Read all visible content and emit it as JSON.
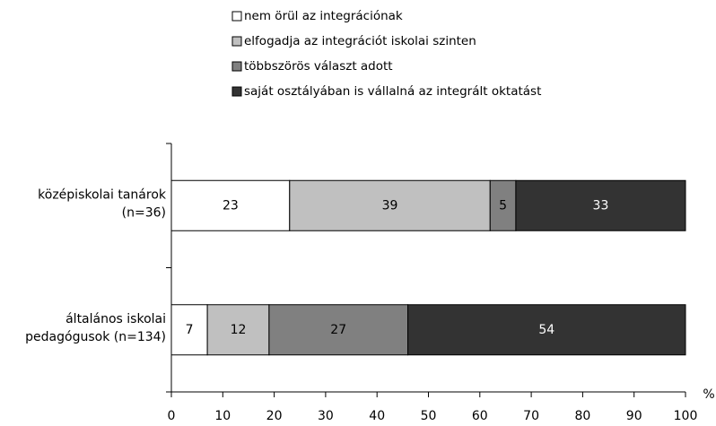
{
  "chart_data": {
    "type": "stacked-barh",
    "categories": [
      [
        "középiskolai tanárok",
        "(n=36)"
      ],
      [
        "általános iskolai",
        "pedagógusok (n=134)"
      ]
    ],
    "series": [
      {
        "name": "nem örül az integrációnak",
        "color": "#ffffff",
        "label_color": "#000000",
        "values": [
          23,
          7
        ]
      },
      {
        "name": "elfogadja az integrációt iskolai szinten",
        "color": "#c0c0c0",
        "label_color": "#000000",
        "values": [
          39,
          12
        ]
      },
      {
        "name": "többszörös választ adott",
        "color": "#808080",
        "label_color": "#000000",
        "values": [
          5,
          27
        ]
      },
      {
        "name": "saját osztályában is vállalná az integrált oktatást",
        "color": "#333333",
        "label_color": "#ffffff",
        "values": [
          33,
          54
        ]
      }
    ],
    "xlabel": "%",
    "xlim": [
      0,
      100
    ],
    "xticks": [
      0,
      10,
      20,
      30,
      40,
      50,
      60,
      70,
      80,
      90,
      100
    ],
    "legend": "top"
  }
}
